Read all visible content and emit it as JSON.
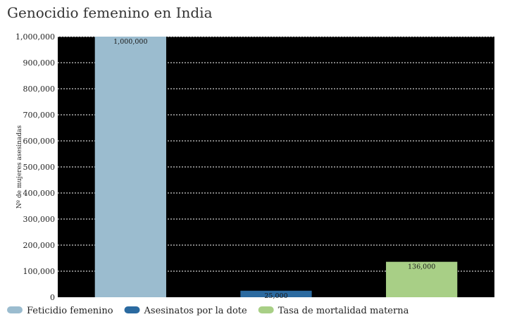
{
  "chart_data": {
    "type": "bar",
    "title": "Genocidio femenino en India",
    "ylabel": "Nº de mujeres asesinadas",
    "xlabel": "",
    "categories": [
      "Feticidio femenino",
      "Asesinatos por la dote",
      "Tasa de mortalidad materna"
    ],
    "values": [
      1000000,
      25000,
      136000
    ],
    "value_labels": [
      "1,000,000",
      "25,000",
      "136,000"
    ],
    "colors": [
      "#9bbccf",
      "#2b6aa0",
      "#a8cf86"
    ],
    "ylim": [
      0,
      1000000
    ],
    "yticks": [
      0,
      100000,
      200000,
      300000,
      400000,
      500000,
      600000,
      700000,
      800000,
      900000,
      1000000
    ],
    "ytick_labels": [
      "0",
      "100,000",
      "200,000",
      "300,000",
      "400,000",
      "500,000",
      "600,000",
      "700,000",
      "800,000",
      "900,000",
      "1,000,000"
    ],
    "plot_background": "#000000",
    "grid": true,
    "grid_style": "dotted",
    "legend_position": "bottom-left",
    "legend": [
      {
        "label": "Feticidio femenino",
        "color": "#9bbccf"
      },
      {
        "label": "Asesinatos por la dote",
        "color": "#2b6aa0"
      },
      {
        "label": "Tasa de mortalidad materna",
        "color": "#a8cf86"
      }
    ]
  }
}
